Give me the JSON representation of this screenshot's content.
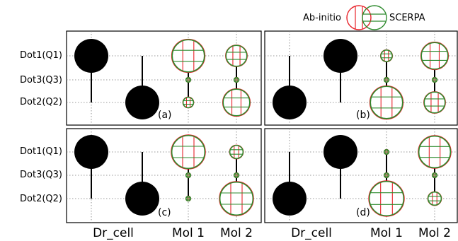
{
  "legend": {
    "ab_initio": "Ab-initio",
    "scerpa": "SCERPA",
    "ab_initio_color": "#e8232a",
    "scerpa_color": "#2e8b2e"
  },
  "y_labels": [
    "Dot1(Q1)",
    "Dot3(Q3)",
    "Dot2(Q2)"
  ],
  "x_labels": [
    "Dr_cell",
    "Mol 1",
    "Mol 2"
  ],
  "panels": [
    {
      "tag": "(a)",
      "driver": "Dot2",
      "mol1": {
        "Dot1": 0.95,
        "Dot3": 0.02,
        "Dot2": 0.1
      },
      "mol2": {
        "Dot1": 0.4,
        "Dot3": 0.02,
        "Dot2": 0.65
      }
    },
    {
      "tag": "(b)",
      "driver": "Dot1",
      "mol1": {
        "Dot1": 0.12,
        "Dot3": 0.02,
        "Dot2": 0.95
      },
      "mol2": {
        "Dot1": 0.65,
        "Dot3": 0.02,
        "Dot2": 0.4
      }
    },
    {
      "tag": "(c)",
      "driver": "Dot2",
      "mol1": {
        "Dot1": 1.0,
        "Dot3": 0.02,
        "Dot2": 0.02
      },
      "mol2": {
        "Dot1": 0.16,
        "Dot3": 0.02,
        "Dot2": 1.0
      }
    },
    {
      "tag": "(d)",
      "driver": "Dot1",
      "mol1": {
        "Dot1": 0.02,
        "Dot3": 0.02,
        "Dot2": 1.08
      },
      "mol2": {
        "Dot1": 0.92,
        "Dot3": 0.02,
        "Dot2": 0.16
      }
    }
  ]
}
